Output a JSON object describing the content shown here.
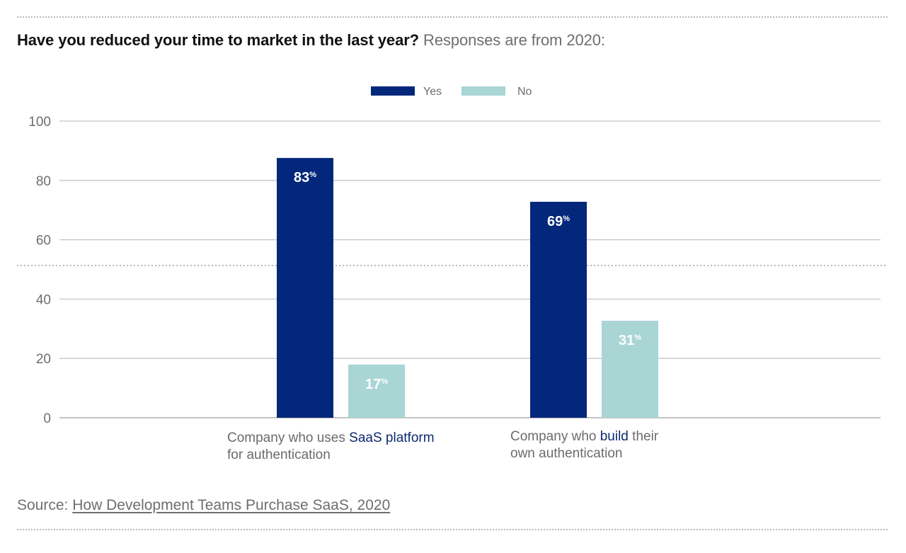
{
  "title": {
    "question": "Have you reduced your time to market in the last year?",
    "subtitle": "Responses are from 2020:"
  },
  "source": {
    "prefix": "Source:",
    "link_text": "How Development Teams Purchase SaaS, 2020"
  },
  "categories_display": [
    {
      "pre": "Company who uses ",
      "highlight": "SaaS platform",
      "post": "",
      "line2": "for authentication"
    },
    {
      "pre": "Company who ",
      "highlight": "build",
      "post": " their",
      "line2": "own authentication"
    }
  ],
  "colors": {
    "yes": "#03277a",
    "no": "#a9d5d5",
    "grid": "#c4c4c4",
    "tick": "#6e6e73",
    "highlight": "#0d2a6e"
  },
  "chart_data": {
    "type": "bar",
    "title": "Have you reduced your time to market in the last year? Responses are from 2020:",
    "categories": [
      "Company who uses SaaS platform for authentication",
      "Company who build their own authentication"
    ],
    "series": [
      {
        "name": "Yes",
        "values": [
          83,
          69
        ],
        "labels": [
          "83%",
          "69%"
        ]
      },
      {
        "name": "No",
        "values": [
          17,
          31
        ],
        "labels": [
          "17%",
          "31%"
        ]
      }
    ],
    "xlabel": "",
    "ylabel": "",
    "ylim": [
      0,
      100
    ],
    "yticks": [
      0,
      20,
      40,
      60,
      80,
      100
    ],
    "grid": true,
    "legend": "top-center"
  }
}
